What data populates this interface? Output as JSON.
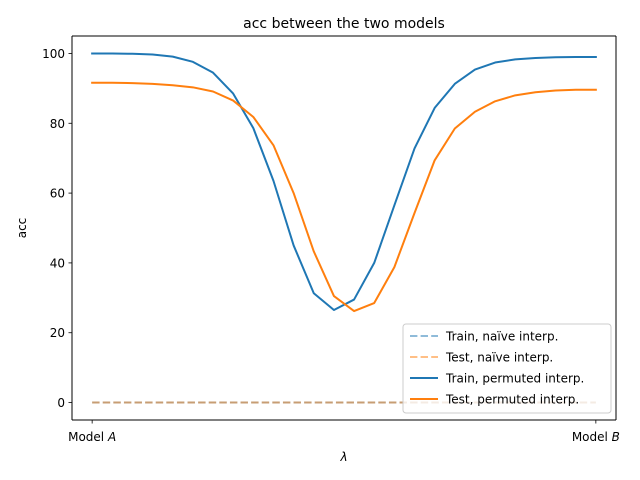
{
  "chart_data": {
    "type": "line",
    "title": "acc between the two models",
    "xlabel": "λ",
    "ylabel": "acc",
    "x_tick_labels": [
      {
        "prefix": "Model ",
        "italic": "A"
      },
      {
        "prefix": "Model ",
        "italic": "B"
      }
    ],
    "xlim": [
      -0.04,
      1.04
    ],
    "ylim": [
      -5,
      105
    ],
    "yticks": [
      0,
      20,
      40,
      60,
      80,
      100
    ],
    "grid": false,
    "legend_position": "lower right",
    "x": [
      0,
      0.04,
      0.08,
      0.12,
      0.16,
      0.2,
      0.24,
      0.28,
      0.32,
      0.36,
      0.4,
      0.44,
      0.48,
      0.52,
      0.56,
      0.6,
      0.64,
      0.68,
      0.72,
      0.76,
      0.8,
      0.84,
      0.88,
      0.92,
      0.96,
      1
    ],
    "series": [
      {
        "name": "Train, naïve interp.",
        "color": "#1f77b4",
        "dashed": true,
        "alpha": 0.5,
        "values": [
          0,
          0,
          0,
          0,
          0,
          0,
          0,
          0,
          0,
          0,
          0,
          0,
          0,
          0,
          0,
          0,
          0,
          0,
          0,
          0,
          0,
          0,
          0,
          0,
          0,
          0
        ]
      },
      {
        "name": "Test, naïve interp.",
        "color": "#ff7f0e",
        "dashed": true,
        "alpha": 0.5,
        "values": [
          0,
          0,
          0,
          0,
          0,
          0,
          0,
          0,
          0,
          0,
          0,
          0,
          0,
          0,
          0,
          0,
          0,
          0,
          0,
          0,
          0,
          0,
          0,
          0,
          0,
          0
        ]
      },
      {
        "name": "Train, permuted interp.",
        "color": "#1f77b4",
        "dashed": false,
        "alpha": 1,
        "values": [
          100,
          100,
          99.9,
          99.7,
          99.1,
          97.6,
          94.5,
          88.5,
          78.6,
          63.5,
          45,
          31.3,
          26.5,
          29.5,
          40,
          56.5,
          72.8,
          84.4,
          91.3,
          95.4,
          97.4,
          98.3,
          98.7,
          98.9,
          99,
          99
        ]
      },
      {
        "name": "Test, permuted interp.",
        "color": "#ff7f0e",
        "dashed": false,
        "alpha": 1,
        "values": [
          91.6,
          91.6,
          91.5,
          91.3,
          90.9,
          90.3,
          89.1,
          86.5,
          81.8,
          73.7,
          60,
          43.3,
          30.5,
          26.2,
          28.5,
          38.8,
          54.3,
          69.4,
          78.5,
          83.3,
          86.3,
          88,
          88.9,
          89.4,
          89.6,
          89.6
        ]
      }
    ]
  }
}
